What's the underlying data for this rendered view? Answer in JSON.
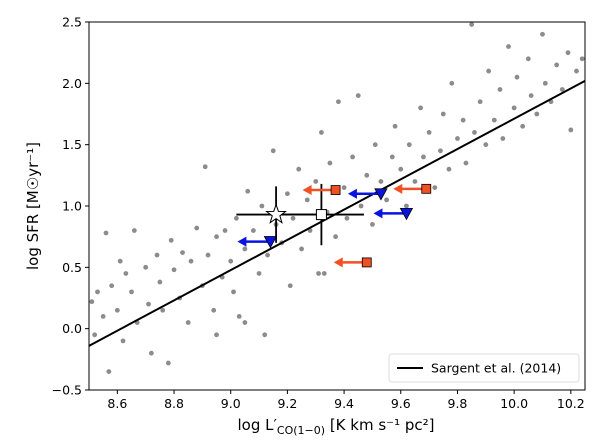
{
  "chart_data": {
    "type": "scatter",
    "xlabel": {
      "main": "log L′",
      "sub": "CO(1−0)",
      "rest": " [K km s⁻¹ pc²]"
    },
    "ylabel": "log SFR [M☉yr⁻¹]",
    "xlim": [
      8.5,
      10.25
    ],
    "ylim": [
      -0.5,
      2.5
    ],
    "xticks": [
      8.6,
      8.8,
      {
        "value": 9,
        "label": "9.0"
      },
      9.2,
      9.4,
      9.6,
      9.8,
      {
        "value": 10,
        "label": "10.0"
      },
      10.2
    ],
    "yticks": [
      {
        "value": -0.5,
        "label": "−0.5"
      },
      {
        "value": 0,
        "label": "0.0"
      },
      0.5,
      {
        "value": 1,
        "label": "1.0"
      },
      1.5,
      {
        "value": 2,
        "label": "2.0"
      },
      2.5
    ],
    "legend": "lower right",
    "points": {
      "color": "#8c8c8c",
      "x": [
        8.51,
        8.52,
        8.53,
        8.55,
        8.56,
        8.57,
        8.58,
        8.6,
        8.61,
        8.62,
        8.63,
        8.65,
        8.66,
        8.67,
        8.7,
        8.71,
        8.72,
        8.74,
        8.75,
        8.76,
        8.78,
        8.79,
        8.8,
        8.82,
        8.83,
        8.85,
        8.86,
        8.88,
        8.9,
        8.91,
        8.92,
        8.94,
        8.95,
        8.97,
        8.98,
        9.0,
        9.01,
        9.02,
        9.03,
        9.05,
        9.06,
        9.08,
        9.1,
        9.11,
        9.12,
        9.13,
        9.15,
        9.16,
        9.18,
        9.2,
        9.21,
        9.22,
        9.24,
        9.25,
        9.27,
        9.28,
        9.3,
        9.31,
        9.32,
        9.34,
        9.35,
        9.37,
        9.38,
        9.4,
        9.41,
        9.43,
        9.45,
        9.46,
        9.48,
        9.5,
        9.51,
        9.53,
        9.55,
        9.57,
        9.58,
        9.6,
        9.62,
        9.63,
        9.65,
        9.67,
        9.68,
        9.7,
        9.72,
        9.74,
        9.75,
        9.77,
        9.78,
        9.8,
        9.82,
        9.83,
        9.85,
        9.86,
        9.88,
        9.9,
        9.91,
        9.93,
        9.95,
        9.96,
        9.98,
        10.0,
        10.01,
        10.03,
        10.05,
        10.06,
        10.08,
        10.1,
        10.11,
        10.13,
        10.15,
        10.17,
        10.19,
        10.2,
        10.22,
        10.24,
        9.33,
        8.95,
        9.05
      ],
      "y": [
        0.22,
        -0.05,
        0.3,
        0.1,
        0.78,
        -0.35,
        0.35,
        0.15,
        0.55,
        -0.1,
        0.45,
        0.3,
        0.8,
        0.05,
        0.5,
        0.2,
        -0.2,
        0.6,
        0.38,
        0.15,
        -0.28,
        0.72,
        0.48,
        0.25,
        0.62,
        0.05,
        0.55,
        0.82,
        0.35,
        1.32,
        0.6,
        0.15,
        0.75,
        0.42,
        0.8,
        0.55,
        0.3,
        0.9,
        0.1,
        0.65,
        1.12,
        0.8,
        0.45,
        1.0,
        -0.05,
        0.6,
        1.45,
        0.85,
        0.7,
        1.1,
        0.35,
        0.9,
        1.3,
        0.65,
        1.05,
        0.8,
        1.2,
        0.45,
        1.6,
        0.95,
        1.35,
        0.75,
        1.85,
        1.15,
        0.9,
        1.4,
        1.9,
        1.0,
        1.25,
        0.85,
        1.5,
        1.2,
        1.05,
        1.4,
        1.65,
        1.3,
        1.0,
        1.5,
        1.2,
        1.8,
        1.4,
        1.6,
        1.15,
        1.45,
        1.75,
        1.3,
        2.0,
        1.55,
        1.7,
        1.35,
        2.48,
        1.6,
        1.85,
        1.5,
        2.1,
        1.7,
        1.95,
        1.55,
        2.3,
        1.8,
        2.05,
        1.65,
        2.2,
        1.9,
        1.75,
        2.4,
        2.0,
        1.85,
        2.15,
        1.95,
        2.25,
        1.62,
        2.1,
        2.2,
        0.45,
        -0.05,
        0.05
      ]
    },
    "fit": {
      "name": "Sargent et al. (2014)",
      "color": "#000000",
      "x": [
        8.5,
        10.25
      ],
      "y": [
        -0.14,
        2.02
      ]
    },
    "star": {
      "x": [
        9.16
      ],
      "y": [
        0.93
      ],
      "xerr": [
        0.14
      ],
      "yerr": [
        0.23
      ]
    },
    "square": {
      "x": [
        9.32
      ],
      "y": [
        0.93
      ],
      "xerr": [
        0.15
      ],
      "yerr": [
        0.25
      ]
    },
    "orange_limits": {
      "color": "#f05022",
      "x": [
        9.37,
        9.69,
        9.48
      ],
      "y": [
        1.13,
        1.14,
        0.54
      ]
    },
    "blue_limits": {
      "color": "#0a14e0",
      "x": [
        9.53,
        9.62,
        9.14
      ],
      "y": [
        1.1,
        0.94,
        0.71
      ]
    }
  }
}
